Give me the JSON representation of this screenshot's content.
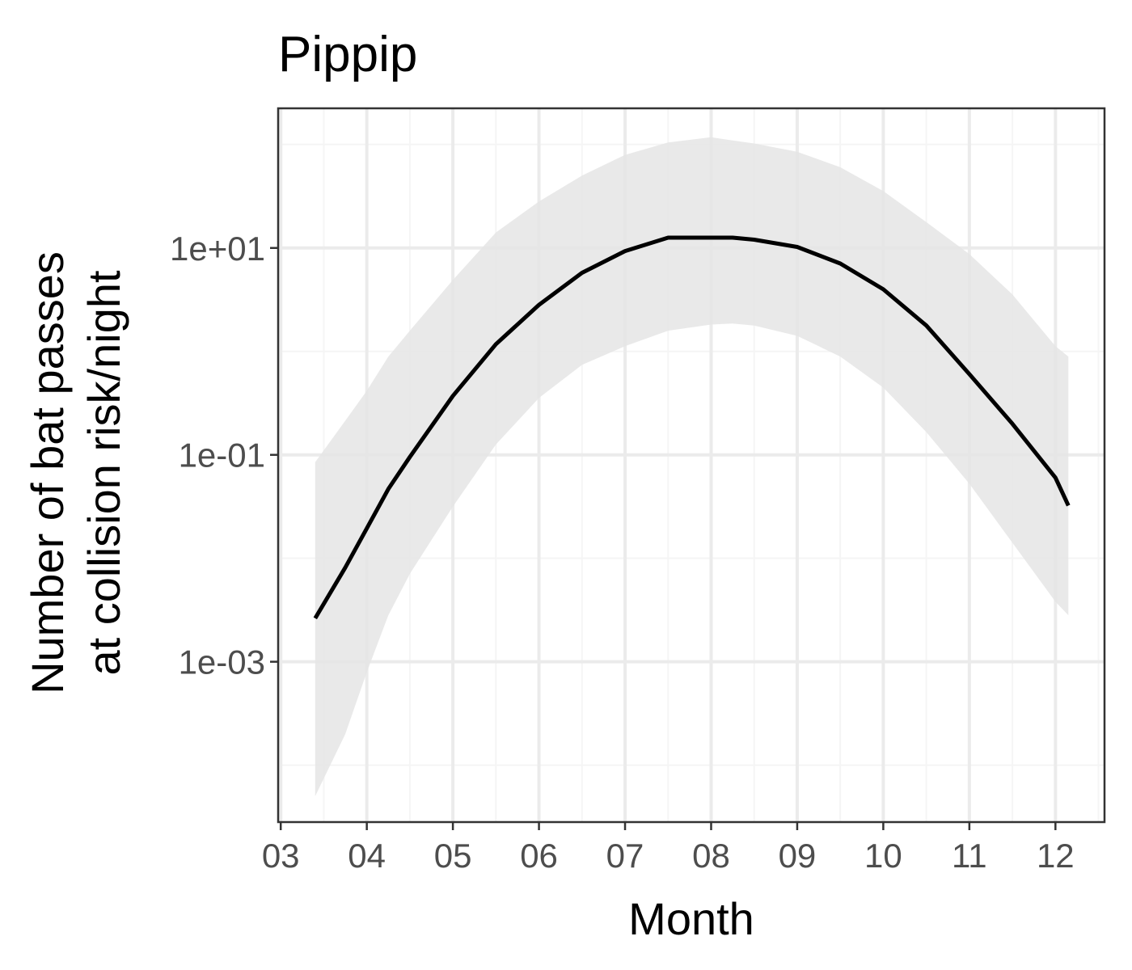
{
  "chart_data": {
    "type": "line",
    "title": "Pippip",
    "xlabel": "Month",
    "ylabel_lines": [
      "Number of bat passes",
      "at collision risk/night"
    ],
    "y_scale": "log10",
    "xlim": [
      2.97,
      12.57
    ],
    "ylim_log10": [
      -4.55,
      2.35
    ],
    "x_ticks": [
      {
        "value": 3,
        "label": "03"
      },
      {
        "value": 4,
        "label": "04"
      },
      {
        "value": 5,
        "label": "05"
      },
      {
        "value": 6,
        "label": "06"
      },
      {
        "value": 7,
        "label": "07"
      },
      {
        "value": 8,
        "label": "08"
      },
      {
        "value": 9,
        "label": "09"
      },
      {
        "value": 10,
        "label": "10"
      },
      {
        "value": 11,
        "label": "11"
      },
      {
        "value": 12,
        "label": "12"
      }
    ],
    "y_ticks": [
      {
        "log10": -3,
        "label": "1e-03"
      },
      {
        "log10": -1,
        "label": "1e-01"
      },
      {
        "log10": 1,
        "label": "1e+01"
      }
    ],
    "y_minor_log10": [
      -4,
      -2,
      0,
      2
    ],
    "x_minor": [
      3.5,
      4.5,
      5.5,
      6.5,
      7.5,
      8.5,
      9.5,
      10.5,
      11.5,
      12.5
    ],
    "series": [
      {
        "name": "fit",
        "x": [
          3.4,
          3.75,
          4.0,
          4.25,
          4.5,
          5.0,
          5.5,
          6.0,
          6.5,
          7.0,
          7.5,
          8.0,
          8.25,
          8.5,
          9.0,
          9.5,
          10.0,
          10.5,
          11.0,
          11.5,
          12.0,
          12.15
        ],
        "y_log10": [
          -2.58,
          -2.09,
          -1.71,
          -1.33,
          -1.02,
          -0.43,
          0.07,
          0.45,
          0.76,
          0.97,
          1.1,
          1.1,
          1.1,
          1.08,
          1.01,
          0.85,
          0.6,
          0.25,
          -0.22,
          -0.7,
          -1.22,
          -1.49
        ],
        "lower_log10": [
          -4.3,
          -3.7,
          -3.1,
          -2.55,
          -2.15,
          -1.5,
          -0.9,
          -0.45,
          -0.13,
          0.05,
          0.2,
          0.26,
          0.27,
          0.25,
          0.15,
          -0.05,
          -0.35,
          -0.78,
          -1.28,
          -1.85,
          -2.42,
          -2.55
        ],
        "upper_log10": [
          -1.07,
          -0.67,
          -0.38,
          -0.05,
          0.2,
          0.69,
          1.15,
          1.45,
          1.7,
          1.9,
          2.02,
          2.07,
          2.04,
          2.01,
          1.93,
          1.78,
          1.55,
          1.25,
          0.94,
          0.55,
          0.05,
          -0.05
        ]
      }
    ],
    "colors": {
      "line": "#000000",
      "ribbon": "#e5e5e5",
      "grid_major": "#ebebeb",
      "grid_minor": "#f5f5f5",
      "border": "#333333",
      "tick_text": "#4d4d4d"
    }
  }
}
